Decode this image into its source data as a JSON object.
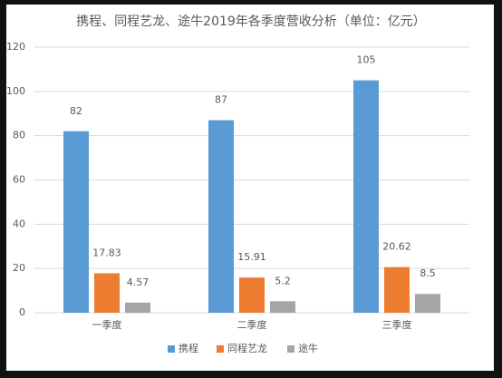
{
  "chart_data": {
    "type": "bar",
    "title": "携程、同程艺龙、途牛2019年各季度营收分析（单位：亿元）",
    "categories": [
      "一季度",
      "二季度",
      "三季度"
    ],
    "series": [
      {
        "name": "携程",
        "color": "#5b9bd5",
        "values": [
          82,
          87,
          105
        ]
      },
      {
        "name": "同程艺龙",
        "color": "#ed7d31",
        "values": [
          17.83,
          15.91,
          20.62
        ]
      },
      {
        "name": "途牛",
        "color": "#a5a5a5",
        "values": [
          4.57,
          5.2,
          8.5
        ]
      }
    ],
    "ylim": [
      0,
      120
    ],
    "yticks": [
      0,
      20,
      40,
      60,
      80,
      100,
      120
    ],
    "grid": true,
    "legend": "bottom"
  }
}
